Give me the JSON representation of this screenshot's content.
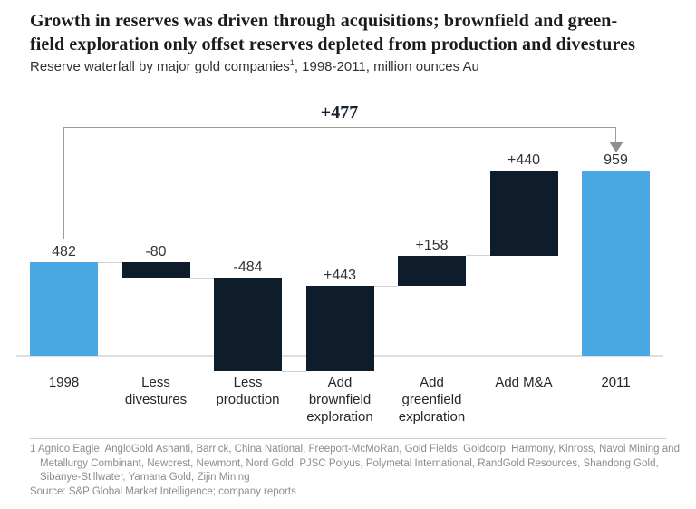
{
  "header": {
    "title_line1": "Growth in reserves was driven through acquisitions; brownfield and green-",
    "title_line2": "field exploration only offset reserves depleted from production and divestures",
    "subtitle_prefix": "Reserve waterfall by major gold companies",
    "subtitle_superscript": "1",
    "subtitle_suffix": ", 1998-2011, million ounces Au"
  },
  "chart_data": {
    "type": "bar",
    "subtype": "waterfall",
    "title": "Reserve waterfall by major gold companies, 1998-2011, million ounces Au",
    "ylabel": "million ounces Au",
    "baseline_value": 0,
    "grid": false,
    "legend": false,
    "bars": [
      {
        "label_lines": [
          "1998"
        ],
        "kind": "total",
        "value": 482,
        "value_label": "482"
      },
      {
        "label_lines": [
          "Less",
          "divestures"
        ],
        "kind": "delta",
        "value": -80,
        "value_label": "-80"
      },
      {
        "label_lines": [
          "Less",
          "production"
        ],
        "kind": "delta",
        "value": -484,
        "value_label": "-484"
      },
      {
        "label_lines": [
          "Add",
          "brownfield",
          "exploration"
        ],
        "kind": "delta",
        "value": 443,
        "value_label": "+443"
      },
      {
        "label_lines": [
          "Add",
          "greenfield",
          "exploration"
        ],
        "kind": "delta",
        "value": 158,
        "value_label": "+158"
      },
      {
        "label_lines": [
          "Add M&A"
        ],
        "kind": "delta",
        "value": 440,
        "value_label": "+440"
      },
      {
        "label_lines": [
          "2011"
        ],
        "kind": "total",
        "value": 959,
        "value_label": "959"
      }
    ],
    "running_totals": [
      482,
      402,
      -82,
      361,
      519,
      959,
      959
    ],
    "bridge_annotation": {
      "label": "+477",
      "from": "1998",
      "to": "2011",
      "value": 477
    },
    "colors": {
      "total_bar": "#49a8e1",
      "delta_bar": "#0e1c2c",
      "bracket": "#9b9b9b"
    }
  },
  "footnote": {
    "lines": [
      "1 Agnico Eagle, AngloGold Ashanti, Barrick, China National, Freeport-McMoRan, Gold Fields, Goldcorp, Harmony, Kinross, Navoi Mining and",
      "Metallurgy Combinant, Newcrest, Newmont, Nord Gold, PJSC Polyus, Polymetal International, RandGold Resources, Shandong Gold,",
      "Sibanye-Stillwater, Yamana Gold, Zijin Mining"
    ],
    "source": "Source: S&P Global Market Intelligence; company reports"
  }
}
